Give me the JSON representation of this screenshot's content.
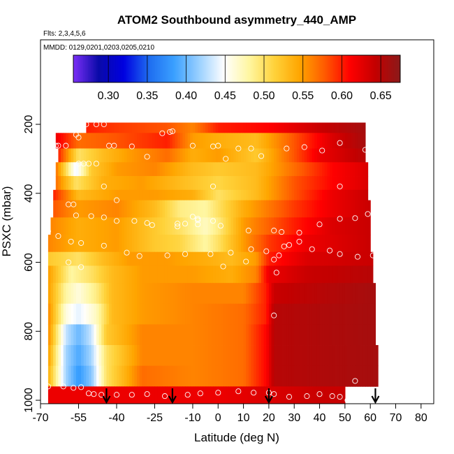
{
  "chart_data": {
    "type": "heatmap",
    "title": "ATOM2 Southbound asymmetry_440_AMP",
    "subtitle_flights": "Flts: 2,3,4,5,6",
    "subtitle_dates": "MMDD: 0129,0201,0203,0205,0210",
    "xlabel": "Latitude (deg N)",
    "ylabel": "PSXC (mbar)",
    "xlim": [
      -70,
      85
    ],
    "ylim": [
      1010,
      -45
    ],
    "x_ticks": [
      -70,
      -55,
      -40,
      -25,
      -10,
      0,
      10,
      20,
      30,
      40,
      50,
      60,
      70,
      80
    ],
    "x_tick_labels": [
      "-70",
      "-55",
      "-40",
      "-25",
      "-10",
      "0",
      "10",
      "20",
      "30",
      "40",
      "50",
      "60",
      "70",
      "80"
    ],
    "y_ticks": [
      200,
      400,
      600,
      800,
      1000
    ],
    "y_tick_labels": [
      "200",
      "400",
      "600",
      "800",
      "1000"
    ],
    "colorbar": {
      "min": 0.255,
      "max": 0.675,
      "ticks": [
        0.3,
        0.35,
        0.4,
        0.45,
        0.5,
        0.55,
        0.6,
        0.65
      ],
      "tick_labels": [
        "0.30",
        "0.35",
        "0.40",
        "0.45",
        "0.50",
        "0.55",
        "0.60",
        "0.65"
      ],
      "colors": [
        "#7b2ff7",
        "#0a0aa8",
        "#0000e0",
        "#1e6cf0",
        "#3aa0ff",
        "#9ad0ff",
        "#ffffff",
        "#fff6a0",
        "#ffd23a",
        "#ffa500",
        "#ff5a00",
        "#ff0000",
        "#c40000",
        "#8b1a1a"
      ]
    },
    "bands": [
      {
        "p_top": 195,
        "p_bot": 225,
        "lat_min": -52,
        "lat_max": 58,
        "nodes": [
          [
            -52,
            0.6
          ],
          [
            -40,
            0.59
          ],
          [
            -20,
            0.58
          ],
          [
            -10,
            0.56
          ],
          [
            0,
            0.6
          ],
          [
            20,
            0.61
          ],
          [
            40,
            0.64
          ],
          [
            58,
            0.66
          ]
        ]
      },
      {
        "p_top": 225,
        "p_bot": 270,
        "lat_min": -64,
        "lat_max": 58,
        "nodes": [
          [
            -64,
            0.62
          ],
          [
            -55,
            0.57
          ],
          [
            -40,
            0.58
          ],
          [
            -20,
            0.6
          ],
          [
            -10,
            0.55
          ],
          [
            0,
            0.54
          ],
          [
            15,
            0.53
          ],
          [
            30,
            0.58
          ],
          [
            45,
            0.63
          ],
          [
            58,
            0.66
          ]
        ]
      },
      {
        "p_top": 270,
        "p_bot": 310,
        "lat_min": -63,
        "lat_max": 58,
        "nodes": [
          [
            -63,
            0.6
          ],
          [
            -55,
            0.5
          ],
          [
            -45,
            0.53
          ],
          [
            -35,
            0.55
          ],
          [
            -20,
            0.57
          ],
          [
            -10,
            0.54
          ],
          [
            0,
            0.55
          ],
          [
            15,
            0.52
          ],
          [
            25,
            0.56
          ],
          [
            40,
            0.62
          ],
          [
            58,
            0.65
          ]
        ]
      },
      {
        "p_top": 310,
        "p_bot": 350,
        "lat_min": -64,
        "lat_max": 59,
        "nodes": [
          [
            -64,
            0.57
          ],
          [
            -56,
            0.44
          ],
          [
            -50,
            0.52
          ],
          [
            -40,
            0.55
          ],
          [
            -25,
            0.56
          ],
          [
            -10,
            0.53
          ],
          [
            0,
            0.52
          ],
          [
            15,
            0.53
          ],
          [
            30,
            0.57
          ],
          [
            45,
            0.61
          ],
          [
            59,
            0.63
          ]
        ]
      },
      {
        "p_top": 350,
        "p_bot": 390,
        "lat_min": -64,
        "lat_max": 59,
        "nodes": [
          [
            -64,
            0.57
          ],
          [
            -56,
            0.5
          ],
          [
            -45,
            0.54
          ],
          [
            -30,
            0.55
          ],
          [
            -15,
            0.53
          ],
          [
            0,
            0.51
          ],
          [
            15,
            0.53
          ],
          [
            30,
            0.58
          ],
          [
            45,
            0.61
          ],
          [
            59,
            0.63
          ]
        ]
      },
      {
        "p_top": 390,
        "p_bot": 420,
        "lat_min": -65,
        "lat_max": 59,
        "nodes": [
          [
            -65,
            0.6
          ],
          [
            -55,
            0.53
          ],
          [
            -40,
            0.55
          ],
          [
            -25,
            0.55
          ],
          [
            -10,
            0.54
          ],
          [
            0,
            0.5
          ],
          [
            15,
            0.53
          ],
          [
            30,
            0.58
          ],
          [
            45,
            0.62
          ],
          [
            59,
            0.64
          ]
        ]
      },
      {
        "p_top": 420,
        "p_bot": 470,
        "lat_min": -65,
        "lat_max": 60,
        "nodes": [
          [
            -65,
            0.58
          ],
          [
            -55,
            0.55
          ],
          [
            -40,
            0.56
          ],
          [
            -25,
            0.53
          ],
          [
            -15,
            0.49
          ],
          [
            -5,
            0.48
          ],
          [
            0,
            0.5
          ],
          [
            10,
            0.54
          ],
          [
            30,
            0.59
          ],
          [
            45,
            0.62
          ],
          [
            60,
            0.64
          ]
        ]
      },
      {
        "p_top": 470,
        "p_bot": 520,
        "lat_min": -66,
        "lat_max": 60,
        "nodes": [
          [
            -66,
            0.56
          ],
          [
            -55,
            0.54
          ],
          [
            -40,
            0.55
          ],
          [
            -25,
            0.52
          ],
          [
            -15,
            0.5
          ],
          [
            -5,
            0.47
          ],
          [
            0,
            0.49
          ],
          [
            10,
            0.55
          ],
          [
            30,
            0.6
          ],
          [
            45,
            0.63
          ],
          [
            60,
            0.64
          ]
        ]
      },
      {
        "p_top": 520,
        "p_bot": 570,
        "lat_min": -67,
        "lat_max": 60,
        "nodes": [
          [
            -67,
            0.56
          ],
          [
            -55,
            0.54
          ],
          [
            -40,
            0.55
          ],
          [
            -25,
            0.52
          ],
          [
            -15,
            0.51
          ],
          [
            -5,
            0.48
          ],
          [
            0,
            0.5
          ],
          [
            10,
            0.55
          ],
          [
            20,
            0.59
          ],
          [
            35,
            0.62
          ],
          [
            60,
            0.64
          ]
        ]
      },
      {
        "p_top": 570,
        "p_bot": 610,
        "lat_min": -67,
        "lat_max": 61,
        "nodes": [
          [
            -67,
            0.52
          ],
          [
            -55,
            0.5
          ],
          [
            -45,
            0.53
          ],
          [
            -35,
            0.55
          ],
          [
            -20,
            0.55
          ],
          [
            -5,
            0.54
          ],
          [
            5,
            0.53
          ],
          [
            15,
            0.55
          ],
          [
            20,
            0.6
          ],
          [
            35,
            0.63
          ],
          [
            61,
            0.64
          ]
        ]
      },
      {
        "p_top": 610,
        "p_bot": 660,
        "lat_min": -67,
        "lat_max": 61,
        "nodes": [
          [
            -67,
            0.55
          ],
          [
            -58,
            0.48
          ],
          [
            -50,
            0.5
          ],
          [
            -42,
            0.53
          ],
          [
            -30,
            0.55
          ],
          [
            -10,
            0.55
          ],
          [
            5,
            0.54
          ],
          [
            15,
            0.56
          ],
          [
            20,
            0.62
          ],
          [
            35,
            0.64
          ],
          [
            61,
            0.65
          ]
        ]
      },
      {
        "p_top": 660,
        "p_bot": 720,
        "lat_min": -67,
        "lat_max": 62,
        "nodes": [
          [
            -67,
            0.55
          ],
          [
            -60,
            0.48
          ],
          [
            -55,
            0.46
          ],
          [
            -48,
            0.49
          ],
          [
            -42,
            0.53
          ],
          [
            -30,
            0.55
          ],
          [
            -10,
            0.56
          ],
          [
            10,
            0.56
          ],
          [
            19,
            0.6
          ],
          [
            22,
            0.64
          ],
          [
            40,
            0.65
          ],
          [
            62,
            0.66
          ]
        ]
      },
      {
        "p_top": 720,
        "p_bot": 780,
        "lat_min": -67,
        "lat_max": 62,
        "nodes": [
          [
            -67,
            0.56
          ],
          [
            -60,
            0.46
          ],
          [
            -55,
            0.44
          ],
          [
            -48,
            0.47
          ],
          [
            -42,
            0.53
          ],
          [
            -30,
            0.55
          ],
          [
            -10,
            0.56
          ],
          [
            10,
            0.57
          ],
          [
            19,
            0.6
          ],
          [
            22,
            0.65
          ],
          [
            62,
            0.66
          ]
        ]
      },
      {
        "p_top": 780,
        "p_bot": 840,
        "lat_min": -67,
        "lat_max": 62,
        "nodes": [
          [
            -67,
            0.56
          ],
          [
            -60,
            0.43
          ],
          [
            -55,
            0.4
          ],
          [
            -50,
            0.43
          ],
          [
            -44,
            0.52
          ],
          [
            -30,
            0.56
          ],
          [
            -10,
            0.56
          ],
          [
            10,
            0.57
          ],
          [
            19,
            0.61
          ],
          [
            22,
            0.65
          ],
          [
            62,
            0.66
          ]
        ]
      },
      {
        "p_top": 840,
        "p_bot": 900,
        "lat_min": -67,
        "lat_max": 63,
        "nodes": [
          [
            -67,
            0.55
          ],
          [
            -60,
            0.42
          ],
          [
            -55,
            0.39
          ],
          [
            -50,
            0.42
          ],
          [
            -44,
            0.5
          ],
          [
            -30,
            0.56
          ],
          [
            -10,
            0.56
          ],
          [
            10,
            0.57
          ],
          [
            19,
            0.61
          ],
          [
            22,
            0.65
          ],
          [
            63,
            0.66
          ]
        ]
      },
      {
        "p_top": 900,
        "p_bot": 960,
        "lat_min": -67,
        "lat_max": 63,
        "nodes": [
          [
            -67,
            0.54
          ],
          [
            -60,
            0.42
          ],
          [
            -55,
            0.38
          ],
          [
            -50,
            0.41
          ],
          [
            -44,
            0.5
          ],
          [
            -30,
            0.57
          ],
          [
            -10,
            0.56
          ],
          [
            10,
            0.57
          ],
          [
            19,
            0.61
          ],
          [
            22,
            0.65
          ],
          [
            63,
            0.66
          ]
        ]
      },
      {
        "p_top": 960,
        "p_bot": 1010,
        "lat_min": -67,
        "lat_max": 50,
        "nodes": [
          [
            -67,
            0.62
          ],
          [
            -55,
            0.62
          ],
          [
            -40,
            0.62
          ],
          [
            -20,
            0.62
          ],
          [
            0,
            0.62
          ],
          [
            20,
            0.63
          ],
          [
            40,
            0.64
          ],
          [
            50,
            0.64
          ]
        ]
      }
    ],
    "points": [
      [
        -52,
        200
      ],
      [
        -48,
        200
      ],
      [
        -45,
        200
      ],
      [
        62,
        200
      ],
      [
        64,
        200
      ],
      [
        -56,
        230
      ],
      [
        -22,
        226
      ],
      [
        -19,
        222
      ],
      [
        -18,
        220
      ],
      [
        -55,
        238
      ],
      [
        -66,
        262
      ],
      [
        -64,
        262
      ],
      [
        -63,
        262
      ],
      [
        -60,
        262
      ],
      [
        -43,
        262
      ],
      [
        -41,
        262
      ],
      [
        -34,
        264
      ],
      [
        -10,
        262
      ],
      [
        -2,
        264
      ],
      [
        0,
        262
      ],
      [
        8,
        270
      ],
      [
        13,
        270
      ],
      [
        27,
        270
      ],
      [
        34,
        266
      ],
      [
        48,
        254
      ],
      [
        41,
        276
      ],
      [
        58,
        274
      ],
      [
        60,
        274
      ],
      [
        -28,
        294
      ],
      [
        3,
        300
      ],
      [
        17,
        292
      ],
      [
        -55,
        314
      ],
      [
        -53,
        314
      ],
      [
        -51,
        314
      ],
      [
        -48,
        314
      ],
      [
        -45,
        380
      ],
      [
        -2,
        380
      ],
      [
        48,
        380
      ],
      [
        61,
        398
      ],
      [
        -40,
        420
      ],
      [
        -59,
        432
      ],
      [
        -57,
        432
      ],
      [
        -67,
        430
      ],
      [
        71,
        432
      ],
      [
        -50,
        466
      ],
      [
        -45,
        470
      ],
      [
        -56,
        464
      ],
      [
        -40,
        480
      ],
      [
        -33,
        480
      ],
      [
        -28,
        486
      ],
      [
        -26,
        492
      ],
      [
        -16,
        488
      ],
      [
        -13,
        488
      ],
      [
        -8,
        478
      ],
      [
        -8,
        474
      ],
      [
        -10,
        468
      ],
      [
        -2,
        480
      ],
      [
        -16,
        496
      ],
      [
        -8,
        490
      ],
      [
        1,
        494
      ],
      [
        12,
        508
      ],
      [
        22,
        508
      ],
      [
        32,
        514
      ],
      [
        25,
        512
      ],
      [
        40,
        490
      ],
      [
        48,
        474
      ],
      [
        54,
        472
      ],
      [
        59,
        460
      ],
      [
        -67,
        510
      ],
      [
        -63,
        524
      ],
      [
        -58,
        540
      ],
      [
        -54,
        544
      ],
      [
        -45,
        552
      ],
      [
        -36,
        572
      ],
      [
        -31,
        582
      ],
      [
        -20,
        580
      ],
      [
        -13,
        576
      ],
      [
        -3,
        576
      ],
      [
        5,
        572
      ],
      [
        13,
        562
      ],
      [
        19,
        568
      ],
      [
        24,
        580
      ],
      [
        26,
        554
      ],
      [
        28,
        550
      ],
      [
        32,
        540
      ],
      [
        37,
        562
      ],
      [
        44,
        566
      ],
      [
        48,
        576
      ],
      [
        55,
        584
      ],
      [
        61,
        580
      ],
      [
        -59,
        600
      ],
      [
        -54,
        614
      ],
      [
        2,
        612
      ],
      [
        11,
        598
      ],
      [
        22,
        592
      ],
      [
        23,
        630
      ],
      [
        22,
        754
      ],
      [
        54,
        944
      ],
      [
        73,
        918
      ],
      [
        -67,
        960
      ],
      [
        -61,
        960
      ],
      [
        -57,
        964
      ],
      [
        -54,
        962
      ],
      [
        -51,
        980
      ],
      [
        -49,
        982
      ],
      [
        -46,
        984
      ],
      [
        -40,
        984
      ],
      [
        -34,
        984
      ],
      [
        -28,
        982
      ],
      [
        -21,
        988
      ],
      [
        -12,
        984
      ],
      [
        -7,
        980
      ],
      [
        0,
        978
      ],
      [
        8,
        974
      ],
      [
        14,
        978
      ],
      [
        20,
        978
      ],
      [
        22,
        982
      ],
      [
        28,
        990
      ],
      [
        35,
        988
      ],
      [
        40,
        982
      ],
      [
        45,
        988
      ],
      [
        48,
        990
      ],
      [
        51,
        1000
      ],
      [
        52,
        1000
      ]
    ],
    "arrow_latitudes": [
      -44,
      -18,
      20,
      62
    ]
  }
}
